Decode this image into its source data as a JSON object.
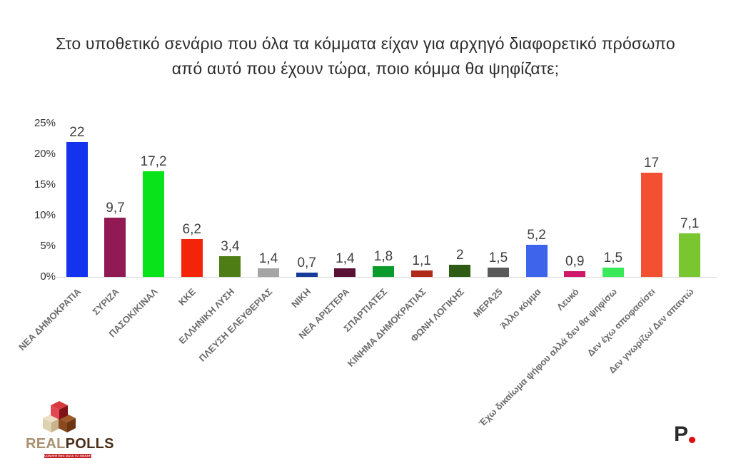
{
  "title": {
    "line1": "Στο υποθετικό σενάριο που όλα τα κόμματα είχαν για αρχηγό διαφορετικό πρόσωπο",
    "line2": "από αυτό που έχουν τώρα, ποιο κόμμα θα ψηφίζατε;"
  },
  "chart_data": {
    "type": "bar",
    "title": "Στο υποθετικό σενάριο που όλα τα κόμματα είχαν για αρχηγό διαφορετικό πρόσωπο από αυτό που έχουν τώρα, ποιο κόμμα θα ψηφίζατε;",
    "categories": [
      "ΝΕΑ ΔΗΜΟΚΡΑΤΙΑ",
      "ΣΥΡΙΖΑ",
      "ΠΑΣΟΚ/ΚΙΝΑΛ",
      "ΚΚΕ",
      "ΕΛΛΗΝΙΚΗ ΛΥΣΗ",
      "ΠΛΕΥΣΗ ΕΛΕΥΘΕΡΙΑΣ",
      "ΝΙΚΗ",
      "ΝΕΑ ΑΡΙΣΤΕΡΑ",
      "ΣΠΑΡΤΙΑΤΕΣ",
      "ΚΙΝΗΜΑ ΔΗΜΟΚΡΑΤΙΑΣ",
      "ΦΩΝΗ ΛΟΓΙΚΗΣ",
      "ΜΕΡΑ25",
      "Άλλο κόμμα",
      "Λευκό",
      "Έχω δικαίωμα ψήφου αλλά δεν θα ψηφίσω",
      "Δεν έχω αποφασίσει",
      "Δεν γνωρίζω/ Δεν απαντώ"
    ],
    "values": [
      22,
      9.7,
      17.2,
      6.2,
      3.4,
      1.4,
      0.7,
      1.4,
      1.8,
      1.1,
      2,
      1.5,
      5.2,
      0.9,
      1.5,
      17,
      7.1
    ],
    "value_labels": [
      "22",
      "9,7",
      "17,2",
      "6,2",
      "3,4",
      "1,4",
      "0,7",
      "1,4",
      "1,8",
      "1,1",
      "2",
      "1,5",
      "5,2",
      "0,9",
      "1,5",
      "17",
      "7,1"
    ],
    "bar_colors": [
      "#1433ee",
      "#911a55",
      "#09e319",
      "#f32408",
      "#4f7d15",
      "#a5a5a5",
      "#173a9b",
      "#5a1135",
      "#0b9b2d",
      "#b02a18",
      "#2f5c15",
      "#595959",
      "#3f64ec",
      "#d0176b",
      "#39e95a",
      "#f25030",
      "#7ac631"
    ],
    "xlabel": "",
    "ylabel": "",
    "ylim": [
      0,
      25
    ],
    "yticks": [
      {
        "value": 0,
        "label": "0%"
      },
      {
        "value": 5,
        "label": "5%"
      },
      {
        "value": 10,
        "label": "10%"
      },
      {
        "value": 15,
        "label": "15%"
      },
      {
        "value": 20,
        "label": "20%"
      },
      {
        "value": 25,
        "label": "25%"
      }
    ],
    "grid": false,
    "legend": "none"
  },
  "footer": {
    "realpolls": {
      "real": "REAL",
      "polls": "POLLS",
      "tagline": "CONVERTING DATA TO INSIGHT"
    },
    "p_logo": {
      "letter": "P"
    }
  },
  "colors": {
    "title_text": "#2d2d2d",
    "axis_line": "#d8d8d8",
    "tick_label": "#333333",
    "value_label": "#404040",
    "category_label": "#6b6b6b",
    "realpolls_real": "#a89070",
    "realpolls_polls": "#4a2e18",
    "tagline_bg": "#c22026",
    "p_letter": "#2a2a2a",
    "p_dot": "#e10c0c"
  }
}
